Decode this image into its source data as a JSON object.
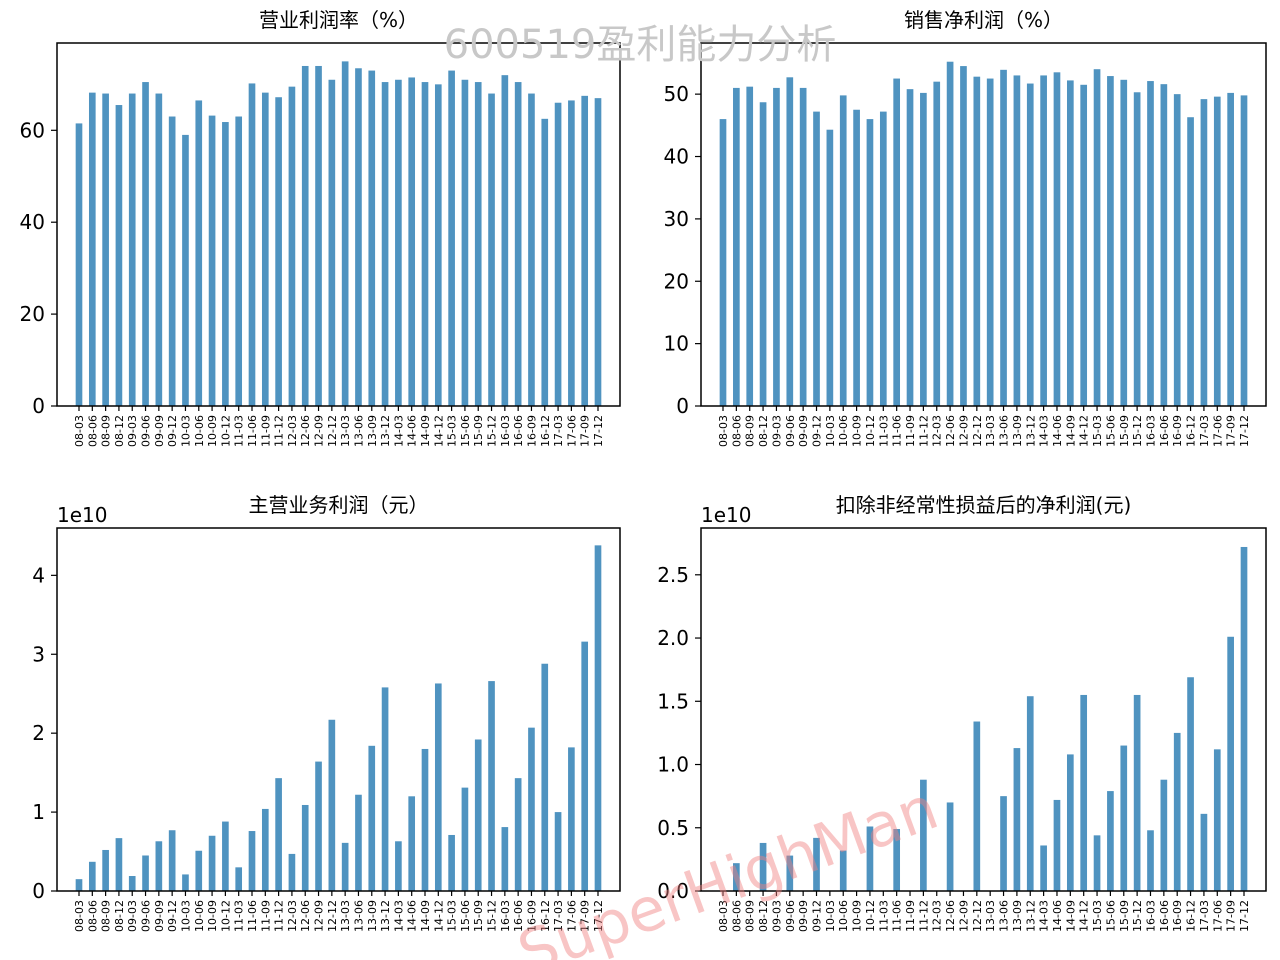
{
  "figure": {
    "suptitle": "600519盈利能力分析",
    "watermark": "SuperHighMan",
    "bar_color": "#4f93c0",
    "watermark_color": "#f08080",
    "suptitle_color": "#c8c8c8"
  },
  "chart_data": [
    {
      "type": "bar",
      "title": "营业利润率（%）",
      "xlabel": "",
      "ylabel": "",
      "offset_label": "",
      "ylim": [
        0,
        79
      ],
      "yticks": [
        0,
        20,
        40,
        60
      ],
      "ytick_labels": [
        "0",
        "20",
        "40",
        "60"
      ],
      "categories": [
        "08-03",
        "08-06",
        "08-09",
        "08-12",
        "09-03",
        "09-06",
        "09-09",
        "09-12",
        "10-03",
        "10-06",
        "10-09",
        "10-12",
        "11-03",
        "11-06",
        "11-09",
        "11-12",
        "12-03",
        "12-06",
        "12-09",
        "12-12",
        "13-03",
        "13-06",
        "13-09",
        "13-12",
        "14-03",
        "14-06",
        "14-09",
        "14-12",
        "15-03",
        "15-06",
        "15-09",
        "15-12",
        "16-03",
        "16-06",
        "16-09",
        "16-12",
        "17-03",
        "17-06",
        "17-09",
        "17-12"
      ],
      "values": [
        61.5,
        68.2,
        68.0,
        65.5,
        68.0,
        70.5,
        68.0,
        63.0,
        59.0,
        66.5,
        63.2,
        61.8,
        63.0,
        70.2,
        68.2,
        67.2,
        69.5,
        74.0,
        74.0,
        71.0,
        75.0,
        73.5,
        73.0,
        70.5,
        71.0,
        71.5,
        70.5,
        70.0,
        73.0,
        71.0,
        70.5,
        68.0,
        72.0,
        70.5,
        68.0,
        62.5,
        66.0,
        66.5,
        67.5,
        67.0
      ]
    },
    {
      "type": "bar",
      "title": "销售净利润（%）",
      "xlabel": "",
      "ylabel": "",
      "offset_label": "",
      "ylim": [
        0,
        58.2
      ],
      "yticks": [
        0,
        10,
        20,
        30,
        40,
        50
      ],
      "ytick_labels": [
        "0",
        "10",
        "20",
        "30",
        "40",
        "50"
      ],
      "categories": [
        "08-03",
        "08-06",
        "08-09",
        "08-12",
        "09-03",
        "09-06",
        "09-09",
        "09-12",
        "10-03",
        "10-06",
        "10-09",
        "10-12",
        "11-03",
        "11-06",
        "11-09",
        "11-12",
        "12-03",
        "12-06",
        "12-09",
        "12-12",
        "13-03",
        "13-06",
        "13-09",
        "13-12",
        "14-03",
        "14-06",
        "14-09",
        "14-12",
        "15-03",
        "15-06",
        "15-09",
        "15-12",
        "16-03",
        "16-06",
        "16-09",
        "16-12",
        "17-03",
        "17-06",
        "17-09",
        "17-12"
      ],
      "values": [
        46.0,
        51.0,
        51.2,
        48.7,
        51.0,
        52.7,
        51.0,
        47.2,
        44.3,
        49.8,
        47.5,
        46.0,
        47.2,
        52.5,
        50.8,
        50.2,
        52.0,
        55.2,
        54.5,
        52.8,
        52.5,
        53.9,
        53.0,
        51.7,
        53.0,
        53.5,
        52.2,
        51.5,
        54.0,
        52.9,
        52.3,
        50.3,
        52.1,
        51.6,
        50.0,
        46.3,
        49.2,
        49.6,
        50.2,
        49.8
      ]
    },
    {
      "type": "bar",
      "title": "主营业务利润（元）",
      "xlabel": "",
      "ylabel": "",
      "offset_label": "1e10",
      "ylim": [
        0,
        4.6
      ],
      "yticks": [
        0,
        1,
        2,
        3,
        4
      ],
      "ytick_labels": [
        "0",
        "1",
        "2",
        "3",
        "4"
      ],
      "categories": [
        "08-03",
        "08-06",
        "08-09",
        "08-12",
        "09-03",
        "09-06",
        "09-09",
        "09-12",
        "10-03",
        "10-06",
        "10-09",
        "10-12",
        "11-03",
        "11-06",
        "11-09",
        "11-12",
        "12-03",
        "12-06",
        "12-09",
        "12-12",
        "13-03",
        "13-06",
        "13-09",
        "13-12",
        "14-03",
        "14-06",
        "14-09",
        "14-12",
        "15-03",
        "15-06",
        "15-09",
        "15-12",
        "16-03",
        "16-06",
        "16-09",
        "16-12",
        "17-03",
        "17-06",
        "17-09",
        "17-12"
      ],
      "values": [
        0.15,
        0.37,
        0.52,
        0.67,
        0.19,
        0.45,
        0.63,
        0.77,
        0.21,
        0.51,
        0.7,
        0.88,
        0.3,
        0.76,
        1.04,
        1.43,
        0.47,
        1.09,
        1.64,
        2.17,
        0.61,
        1.22,
        1.84,
        2.58,
        0.63,
        1.2,
        1.8,
        2.63,
        0.71,
        1.31,
        1.92,
        2.66,
        0.81,
        1.43,
        2.07,
        2.88,
        1.0,
        1.82,
        3.16,
        4.38
      ]
    },
    {
      "type": "bar",
      "title": "扣除非经常性损益后的净利润(元)",
      "xlabel": "",
      "ylabel": "",
      "offset_label": "1e10",
      "ylim": [
        0,
        2.87
      ],
      "yticks": [
        0,
        0.5,
        1.0,
        1.5,
        2.0,
        2.5
      ],
      "ytick_labels": [
        "0.0",
        "0.5",
        "1.0",
        "1.5",
        "2.0",
        "2.5"
      ],
      "categories": [
        "08-03",
        "08-06",
        "08-09",
        "08-12",
        "09-03",
        "09-06",
        "09-09",
        "09-12",
        "10-03",
        "10-06",
        "10-09",
        "10-12",
        "11-03",
        "11-06",
        "11-09",
        "11-12",
        "12-03",
        "12-06",
        "12-09",
        "12-12",
        "13-03",
        "13-06",
        "13-09",
        "13-12",
        "14-03",
        "14-06",
        "14-09",
        "14-12",
        "15-03",
        "15-06",
        "15-09",
        "15-12",
        "16-03",
        "16-06",
        "16-09",
        "16-12",
        "17-03",
        "17-06",
        "17-09",
        "17-12"
      ],
      "values": [
        0,
        0.22,
        0,
        0.38,
        0,
        0.28,
        0,
        0.42,
        0,
        0.32,
        0,
        0.51,
        0,
        0.49,
        0,
        0.88,
        0,
        0.7,
        0,
        1.34,
        0,
        0.75,
        1.13,
        1.54,
        0.36,
        0.72,
        1.08,
        1.55,
        0.44,
        0.79,
        1.15,
        1.55,
        0.48,
        0.88,
        1.25,
        1.69,
        0.61,
        1.12,
        2.01,
        2.72
      ]
    }
  ]
}
